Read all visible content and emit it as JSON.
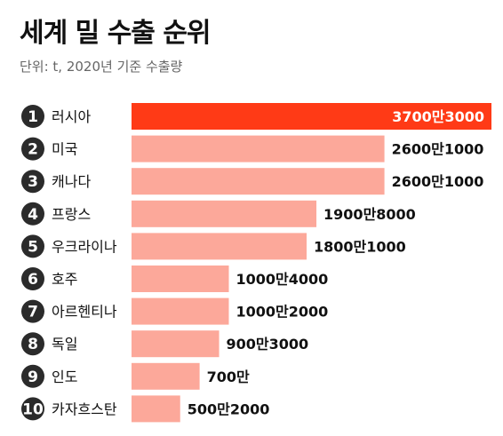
{
  "title": "세계 밀 수출 순위",
  "subtitle": "단위: t, 2020년 기준 수출량",
  "colors": {
    "highlight": "#FF3A16",
    "bar": "#FCA89A",
    "badge": "#2B2B2B"
  },
  "chart_data": {
    "type": "bar",
    "orientation": "horizontal",
    "title": "세계 밀 수출 순위",
    "unit": "t",
    "xlim": [
      0,
      37003000
    ],
    "grid": false,
    "legend": "none",
    "ranks": [
      "1",
      "2",
      "3",
      "4",
      "5",
      "6",
      "7",
      "8",
      "9",
      "10"
    ],
    "categories": [
      "러시아",
      "미국",
      "캐나다",
      "프랑스",
      "우크라이나",
      "호주",
      "아르헨티나",
      "독일",
      "인도",
      "카자흐스탄"
    ],
    "values": [
      37003000,
      26001000,
      26001000,
      19008000,
      18001000,
      10004000,
      10002000,
      9003000,
      7000000,
      5002000
    ],
    "value_labels": [
      "3700만3000",
      "2600만1000",
      "2600만1000",
      "1900만8000",
      "1800만1000",
      "1000만4000",
      "1000만2000",
      "900만3000",
      "700만",
      "500만2000"
    ],
    "highlight_index": 0
  }
}
